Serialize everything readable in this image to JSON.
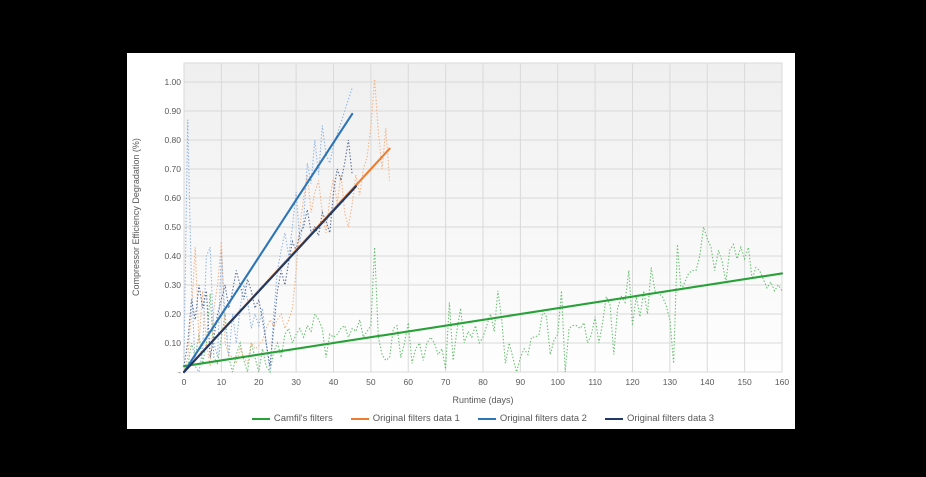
{
  "page": {
    "background": "#000000",
    "panel_background": "#ffffff"
  },
  "chart_data": {
    "type": "line",
    "title": "",
    "xlabel": "Runtime (days)",
    "ylabel": "Compressor Efficiency Degradation (%)",
    "xlim": [
      0,
      160
    ],
    "ylim": [
      0,
      1.065
    ],
    "grid": true,
    "legend_position": "bottom",
    "x_ticks": [
      0,
      10,
      20,
      30,
      40,
      50,
      60,
      70,
      80,
      90,
      100,
      110,
      120,
      130,
      140,
      150,
      160
    ],
    "y_ticks": [
      {
        "v": 0.0,
        "label": "-"
      },
      {
        "v": 0.1,
        "label": "0.10"
      },
      {
        "v": 0.2,
        "label": "0.20"
      },
      {
        "v": 0.3,
        "label": "0.30"
      },
      {
        "v": 0.4,
        "label": "0.40"
      },
      {
        "v": 0.5,
        "label": "0.50"
      },
      {
        "v": 0.6,
        "label": "0.60"
      },
      {
        "v": 0.7,
        "label": "0.70"
      },
      {
        "v": 0.8,
        "label": "0.80"
      },
      {
        "v": 0.9,
        "label": "0.90"
      },
      {
        "v": 1.0,
        "label": "1.00"
      }
    ],
    "series": [
      {
        "name": "Camfil's filters",
        "trend_color": "#27A138",
        "raw_color": "#66BE6E",
        "raw_style": "dotted",
        "raw": {
          "x_start": 0,
          "x_step": 1,
          "y": [
            0.0,
            0.02,
            0.1,
            0.05,
            0.13,
            0.03,
            0.1,
            0.27,
            0.05,
            0.03,
            0.12,
            0.2,
            0.05,
            0.0,
            0.06,
            0.1,
            0.04,
            0.0,
            0.1,
            0.05,
            0.0,
            0.08,
            0.02,
            0.0,
            0.07,
            0.1,
            0.05,
            0.13,
            0.15,
            0.1,
            0.13,
            0.15,
            0.12,
            0.16,
            0.14,
            0.2,
            0.18,
            0.15,
            0.05,
            0.13,
            0.12,
            0.13,
            0.15,
            0.16,
            0.12,
            0.15,
            0.14,
            0.18,
            0.12,
            0.14,
            0.16,
            0.43,
            0.12,
            0.06,
            0.04,
            0.05,
            0.15,
            0.16,
            0.05,
            0.1,
            0.17,
            0.03,
            0.08,
            0.1,
            0.04,
            0.1,
            0.12,
            0.1,
            0.06,
            0.08,
            0.01,
            0.24,
            0.04,
            0.14,
            0.22,
            0.1,
            0.14,
            0.12,
            0.16,
            0.1,
            0.12,
            0.16,
            0.2,
            0.14,
            0.28,
            0.18,
            0.03,
            0.1,
            0.05,
            0.0,
            0.05,
            0.08,
            0.06,
            0.12,
            0.12,
            0.13,
            0.21,
            0.19,
            0.06,
            0.11,
            0.13,
            0.28,
            0.0,
            0.15,
            0.16,
            0.16,
            0.15,
            0.17,
            0.1,
            0.13,
            0.19,
            0.1,
            0.17,
            0.26,
            0.23,
            0.06,
            0.22,
            0.26,
            0.24,
            0.35,
            0.16,
            0.26,
            0.19,
            0.28,
            0.2,
            0.36,
            0.28,
            0.27,
            0.26,
            0.23,
            0.18,
            0.03,
            0.44,
            0.28,
            0.31,
            0.34,
            0.35,
            0.35,
            0.4,
            0.5,
            0.46,
            0.43,
            0.35,
            0.42,
            0.38,
            0.31,
            0.42,
            0.44,
            0.39,
            0.43,
            0.39,
            0.43,
            0.32,
            0.36,
            0.35,
            0.32,
            0.29,
            0.31,
            0.28,
            0.3,
            0.28
          ]
        },
        "trend": {
          "x": [
            0,
            160
          ],
          "y": [
            0.02,
            0.34
          ]
        }
      },
      {
        "name": "Original filters data 1",
        "trend_color": "#ED7D31",
        "raw_color": "#F5B183",
        "raw_style": "dotted",
        "raw": {
          "x_start": 0,
          "x_step": 1,
          "y": [
            0.0,
            0.05,
            0.2,
            0.43,
            0.1,
            0.28,
            0.1,
            0.02,
            0.22,
            0.3,
            0.45,
            0.1,
            0.06,
            0.05,
            0.03,
            0.08,
            0.05,
            0.03,
            0.1,
            0.08,
            0.09,
            0.11,
            0.15,
            0.18,
            0.16,
            0.18,
            0.2,
            0.15,
            0.18,
            0.22,
            0.35,
            0.5,
            0.6,
            0.68,
            0.55,
            0.62,
            0.66,
            0.55,
            0.48,
            0.6,
            0.67,
            0.58,
            0.68,
            0.55,
            0.5,
            0.58,
            0.68,
            0.61,
            0.7,
            0.74,
            0.85,
            1.01,
            0.83,
            0.7,
            0.84,
            0.66
          ]
        },
        "trend": {
          "x": [
            0,
            55
          ],
          "y": [
            0.0,
            0.77
          ]
        }
      },
      {
        "name": "Original filters data 2",
        "trend_color": "#2E75B6",
        "raw_color": "#8EB4E3",
        "raw_style": "dotted",
        "raw": {
          "x_start": 0,
          "x_step": 1,
          "y": [
            0.05,
            0.87,
            0.3,
            0.02,
            0.0,
            0.08,
            0.4,
            0.43,
            0.1,
            0.05,
            0.42,
            0.18,
            0.05,
            0.2,
            0.1,
            0.22,
            0.3,
            0.25,
            0.15,
            0.2,
            0.16,
            0.22,
            0.1,
            0.0,
            0.2,
            0.35,
            0.42,
            0.48,
            0.4,
            0.5,
            0.62,
            0.45,
            0.52,
            0.72,
            0.65,
            0.8,
            0.68,
            0.85,
            0.75,
            0.72,
            0.78,
            0.82,
            0.86,
            0.9,
            0.94,
            0.98
          ]
        },
        "trend": {
          "x": [
            0,
            45
          ],
          "y": [
            0.0,
            0.89
          ]
        }
      },
      {
        "name": "Original filters data 3",
        "trend_color": "#1F3864",
        "raw_color": "#566B94",
        "raw_style": "dotted",
        "raw": {
          "x_start": 0,
          "x_step": 1,
          "y": [
            0.02,
            0.1,
            0.25,
            0.18,
            0.3,
            0.22,
            0.28,
            0.05,
            0.12,
            0.2,
            0.25,
            0.3,
            0.22,
            0.28,
            0.35,
            0.3,
            0.25,
            0.32,
            0.28,
            0.22,
            0.25,
            0.18,
            0.1,
            0.02,
            0.15,
            0.28,
            0.35,
            0.3,
            0.38,
            0.45,
            0.42,
            0.48,
            0.5,
            0.56,
            0.48,
            0.5,
            0.47,
            0.55,
            0.52,
            0.48,
            0.62,
            0.7,
            0.66,
            0.72,
            0.8,
            0.68
          ]
        },
        "trend": {
          "x": [
            0,
            46
          ],
          "y": [
            0.0,
            0.64
          ]
        }
      }
    ],
    "plot_style": {
      "bg_gradient_top": "#EFEFEF",
      "bg_gradient_bottom": "#FEFEFE",
      "gridline_color": "#D9D9D9",
      "tick_label_color": "#595959"
    }
  }
}
